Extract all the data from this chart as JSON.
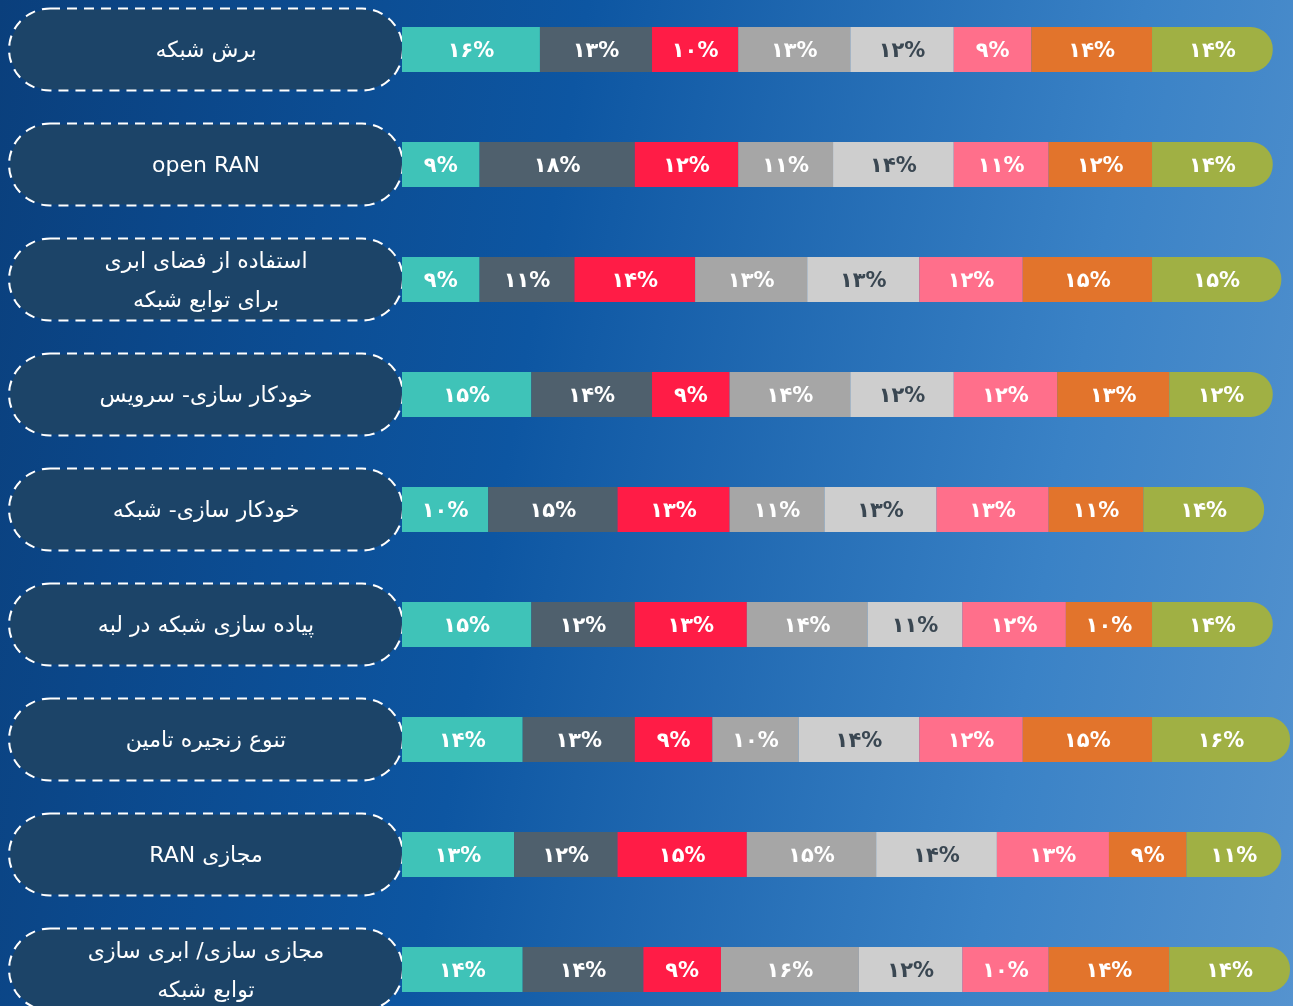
{
  "chart_data": {
    "type": "bar",
    "orientation": "horizontal",
    "stacked": true,
    "categories": [
      "برش شبکه",
      "open RAN",
      "استفاده از فضای ابری\nبرای توابع شبکه",
      "خودکار سازی- سرویس",
      "خودکار سازی- شبکه",
      "پیاده سازی شبکه در لبه",
      "تنوع زنجیره تامین",
      "RAN مجازی",
      "مجازی سازی/ ابری سازی\nتوابع شبکه"
    ],
    "series": [
      {
        "color": "#3fc3b8",
        "values": [
          16,
          9,
          9,
          15,
          10,
          15,
          14,
          13,
          14
        ],
        "value_labels": [
          "۱۶%",
          "۹%",
          "۹%",
          "۱۵%",
          "۱۰%",
          "۱۵%",
          "۱۴%",
          "۱۳%",
          "۱۴%"
        ]
      },
      {
        "color": "#4f606d",
        "values": [
          13,
          18,
          11,
          14,
          15,
          12,
          13,
          12,
          14
        ],
        "value_labels": [
          "۱۳%",
          "۱۸%",
          "۱۱%",
          "۱۴%",
          "۱۵%",
          "۱۲%",
          "۱۳%",
          "۱۲%",
          "۱۴%"
        ]
      },
      {
        "color": "#ff1c46",
        "values": [
          10,
          12,
          14,
          9,
          13,
          13,
          9,
          15,
          9
        ],
        "value_labels": [
          "۱۰%",
          "۱۲%",
          "۱۴%",
          "۹%",
          "۱۳%",
          "۱۳%",
          "۹%",
          "۱۵%",
          "۹%"
        ]
      },
      {
        "color": "#a6a6a6",
        "values": [
          13,
          11,
          13,
          14,
          11,
          14,
          10,
          15,
          16
        ],
        "value_labels": [
          "۱۳%",
          "۱۱%",
          "۱۳%",
          "۱۴%",
          "۱۱%",
          "۱۴%",
          "۱۰%",
          "۱۵%",
          "۱۶%"
        ]
      },
      {
        "color": "#cecece",
        "values": [
          12,
          14,
          13,
          12,
          13,
          11,
          14,
          14,
          12
        ],
        "value_labels": [
          "۱۲%",
          "۱۴%",
          "۱۳%",
          "۱۲%",
          "۱۳%",
          "۱۱%",
          "۱۴%",
          "۱۴%",
          "۱۲%"
        ]
      },
      {
        "color": "#ff6f8b",
        "values": [
          9,
          11,
          12,
          12,
          13,
          12,
          12,
          13,
          10
        ],
        "value_labels": [
          "۹%",
          "۱۱%",
          "۱۲%",
          "۱۲%",
          "۱۳%",
          "۱۲%",
          "۱۲%",
          "۱۳%",
          "۱۰%"
        ]
      },
      {
        "color": "#e2742c",
        "values": [
          14,
          12,
          15,
          13,
          11,
          10,
          15,
          9,
          14
        ],
        "value_labels": [
          "۱۴%",
          "۱۲%",
          "۱۵%",
          "۱۳%",
          "۱۱%",
          "۱۰%",
          "۱۵%",
          "۹%",
          "۱۴%"
        ]
      },
      {
        "color": "#a0b044",
        "values": [
          14,
          14,
          15,
          12,
          14,
          14,
          16,
          11,
          14
        ],
        "value_labels": [
          "۱۴%",
          "۱۴%",
          "۱۵%",
          "۱۲%",
          "۱۴%",
          "۱۴%",
          "۱۶%",
          "۱۱%",
          "۱۴%"
        ]
      }
    ]
  }
}
